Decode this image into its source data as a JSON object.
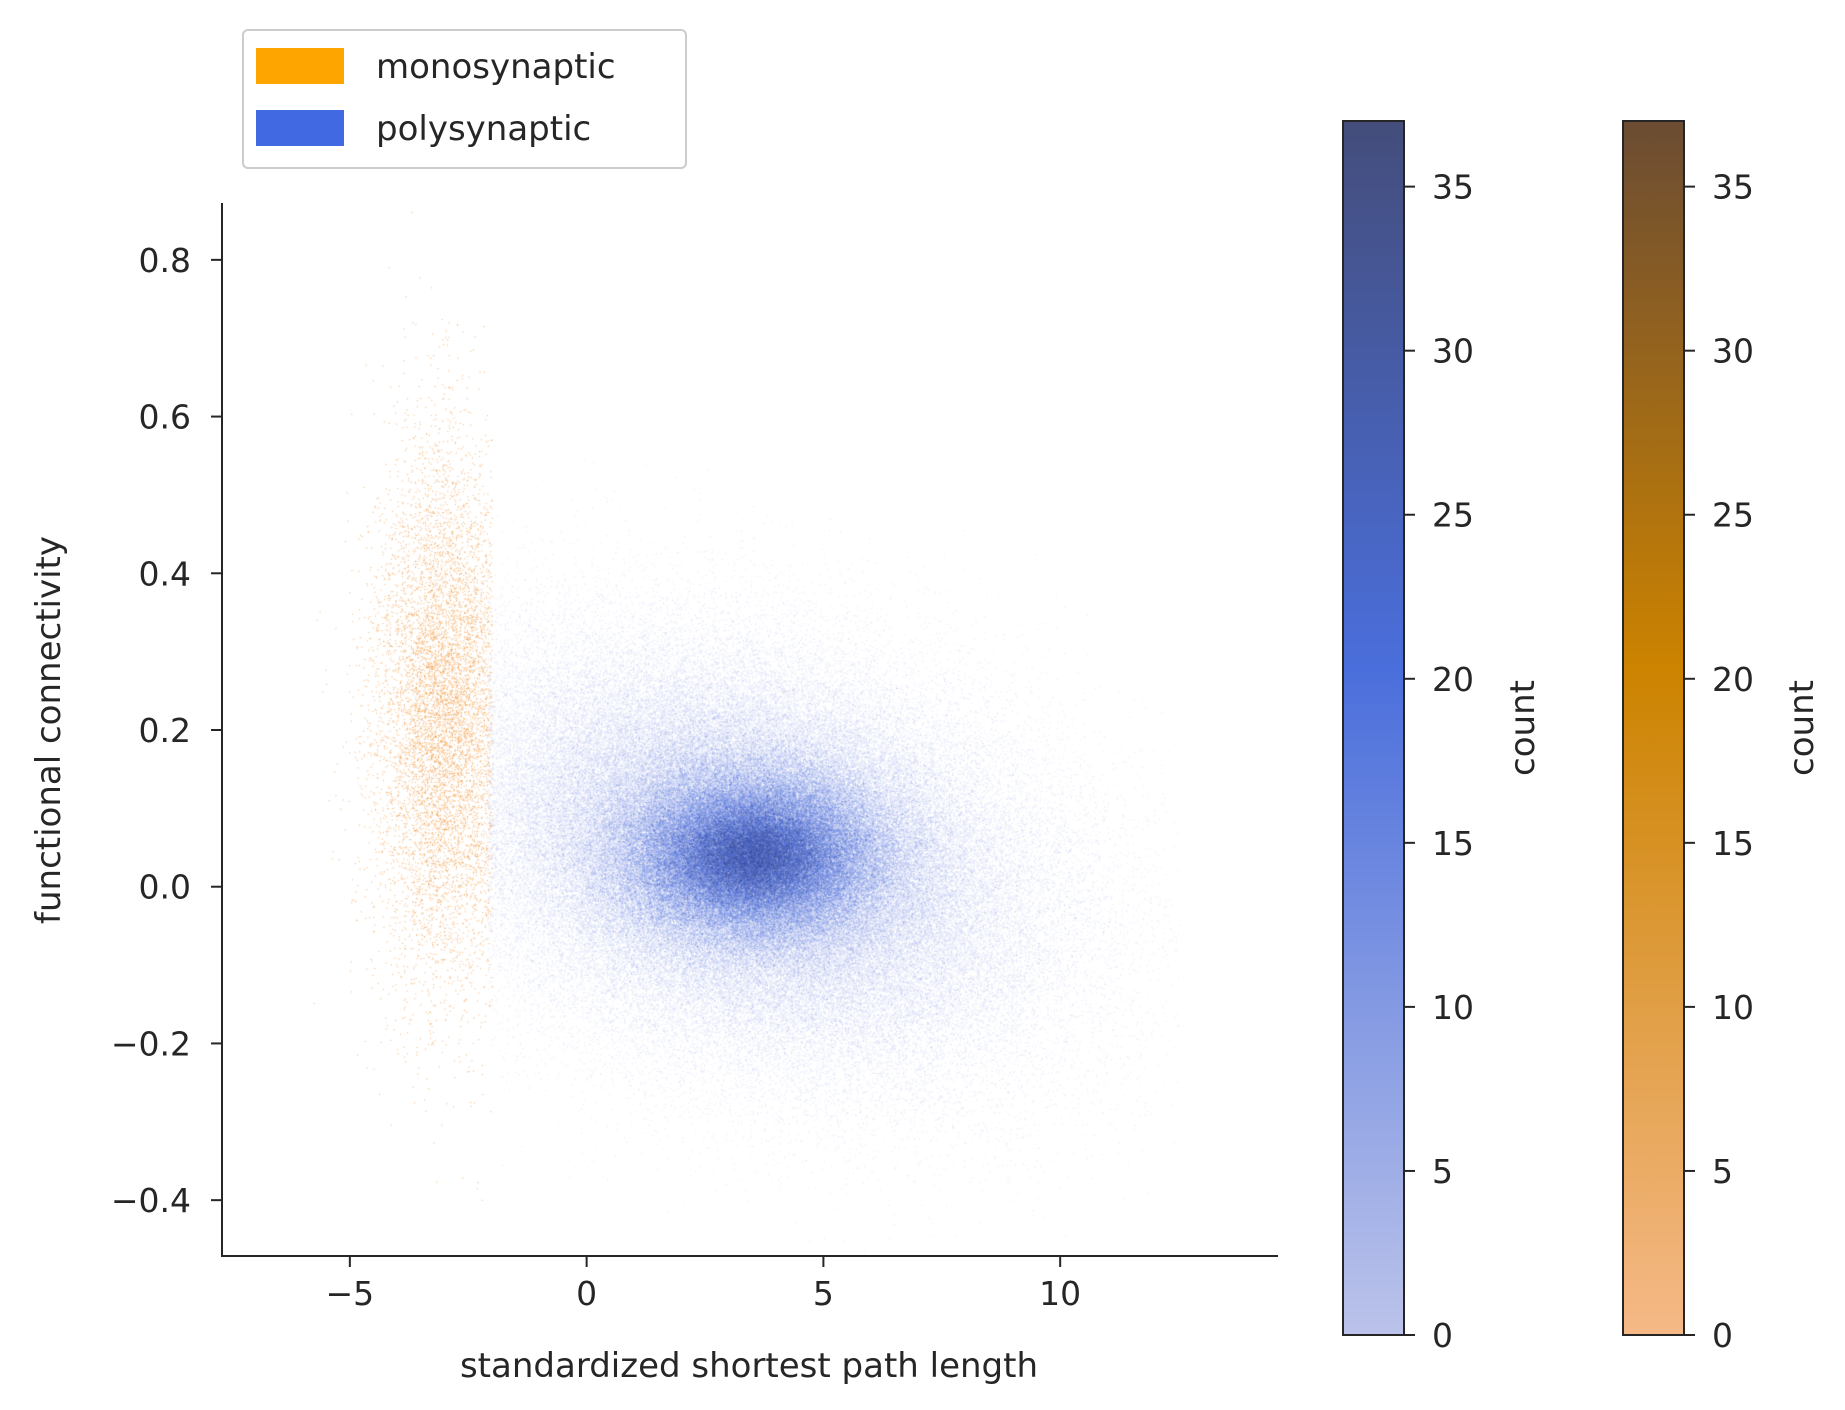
{
  "chart_data": {
    "type": "heatmap",
    "subtype": "2D histogram (density scatter), two overlaid distributions",
    "xlabel": "standardized shortest path length",
    "ylabel": "functional connectivity",
    "xlim": [
      -7.7,
      14.6
    ],
    "ylim": [
      -0.47,
      0.87
    ],
    "x_ticks": [
      {
        "value": -5,
        "label": "−5"
      },
      {
        "value": 0,
        "label": "0"
      },
      {
        "value": 5,
        "label": "5"
      },
      {
        "value": 10,
        "label": "10"
      }
    ],
    "y_ticks": [
      {
        "value": 0.8,
        "label": "0.8"
      },
      {
        "value": 0.6,
        "label": "0.6"
      },
      {
        "value": 0.4,
        "label": "0.4"
      },
      {
        "value": 0.2,
        "label": "0.2"
      },
      {
        "value": 0.0,
        "label": "0.0"
      },
      {
        "value": -0.2,
        "label": "−0.2"
      },
      {
        "value": -0.4,
        "label": "−0.4"
      }
    ],
    "grid": false,
    "legend_position": "top-left, above the axes",
    "legend": [
      {
        "label": "monosynaptic",
        "color": "#FFA500"
      },
      {
        "label": "polysynaptic",
        "color": "#4169E1"
      }
    ],
    "series": [
      {
        "name": "monosynaptic",
        "color": "#FFA500",
        "center": [
          -3.0,
          0.22
        ],
        "x_range": [
          -6.5,
          -2.0
        ],
        "y_range": [
          -0.22,
          0.76
        ]
      },
      {
        "name": "polysynaptic",
        "color": "#4169E1",
        "center": [
          3.5,
          0.04
        ],
        "x_range": [
          -2.0,
          12.5
        ],
        "y_range": [
          -0.35,
          0.72
        ]
      }
    ],
    "colorbars": [
      {
        "label": "count",
        "range": [
          0,
          37
        ],
        "ticks": [
          {
            "value": 0,
            "label": "0"
          },
          {
            "value": 5,
            "label": "5"
          },
          {
            "value": 10,
            "label": "10"
          },
          {
            "value": 15,
            "label": "15"
          },
          {
            "value": 20,
            "label": "20"
          },
          {
            "value": 25,
            "label": "25"
          },
          {
            "value": 30,
            "label": "30"
          },
          {
            "value": 35,
            "label": "35"
          }
        ],
        "color_low": "#BBC3EA",
        "color_mid": "#4A6EDB",
        "color_high": "#444D7B"
      },
      {
        "label": "count",
        "range": [
          0,
          37
        ],
        "ticks": [
          {
            "value": 0,
            "label": "0"
          },
          {
            "value": 5,
            "label": "5"
          },
          {
            "value": 10,
            "label": "10"
          },
          {
            "value": 15,
            "label": "15"
          },
          {
            "value": 20,
            "label": "20"
          },
          {
            "value": 25,
            "label": "25"
          },
          {
            "value": 30,
            "label": "30"
          },
          {
            "value": 35,
            "label": "35"
          }
        ],
        "color_low": "#F5B987",
        "color_mid": "#CC8300",
        "color_high": "#6B4C33"
      }
    ]
  }
}
